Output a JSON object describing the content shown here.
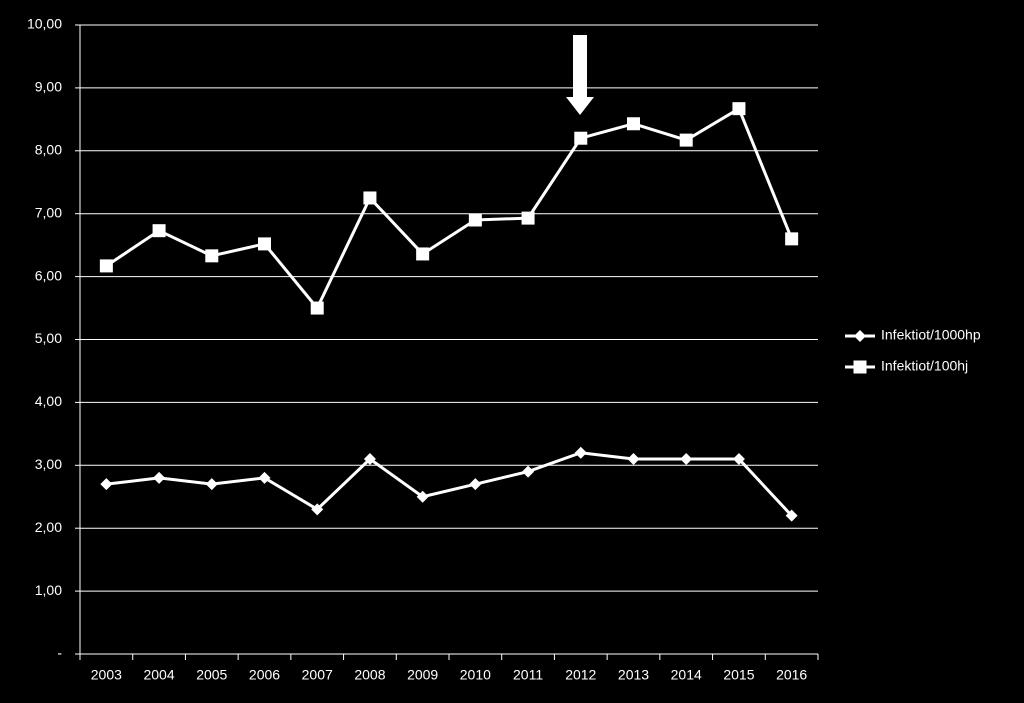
{
  "chart_data": {
    "type": "line",
    "categories": [
      "2003",
      "2004",
      "2005",
      "2006",
      "2007",
      "2008",
      "2009",
      "2010",
      "2011",
      "2012",
      "2013",
      "2014",
      "2015",
      "2016"
    ],
    "series": [
      {
        "name": "Infektiot/1000hp",
        "color": "#ffffff",
        "marker": "diamond",
        "values": [
          2.7,
          2.8,
          2.7,
          2.8,
          2.3,
          3.1,
          2.5,
          2.7,
          2.9,
          3.2,
          3.1,
          3.1,
          3.1,
          2.2
        ]
      },
      {
        "name": "Infektiot/100hj",
        "color": "#ffffff",
        "marker": "square",
        "values": [
          6.17,
          6.73,
          6.33,
          6.52,
          5.5,
          7.25,
          6.36,
          6.9,
          6.93,
          8.2,
          8.43,
          8.17,
          8.67,
          6.6
        ]
      }
    ],
    "ylim": [
      0,
      10
    ],
    "yticks": [
      {
        "value": 0,
        "label": "-"
      },
      {
        "value": 1,
        "label": "1,00"
      },
      {
        "value": 2,
        "label": "2,00"
      },
      {
        "value": 3,
        "label": "3,00"
      },
      {
        "value": 4,
        "label": "4,00"
      },
      {
        "value": 5,
        "label": "5,00"
      },
      {
        "value": 6,
        "label": "6,00"
      },
      {
        "value": 7,
        "label": "7,00"
      },
      {
        "value": 8,
        "label": "8,00"
      },
      {
        "value": 9,
        "label": "9,00"
      },
      {
        "value": 10,
        "label": "10,00"
      }
    ],
    "grid": true,
    "legend": "right"
  }
}
